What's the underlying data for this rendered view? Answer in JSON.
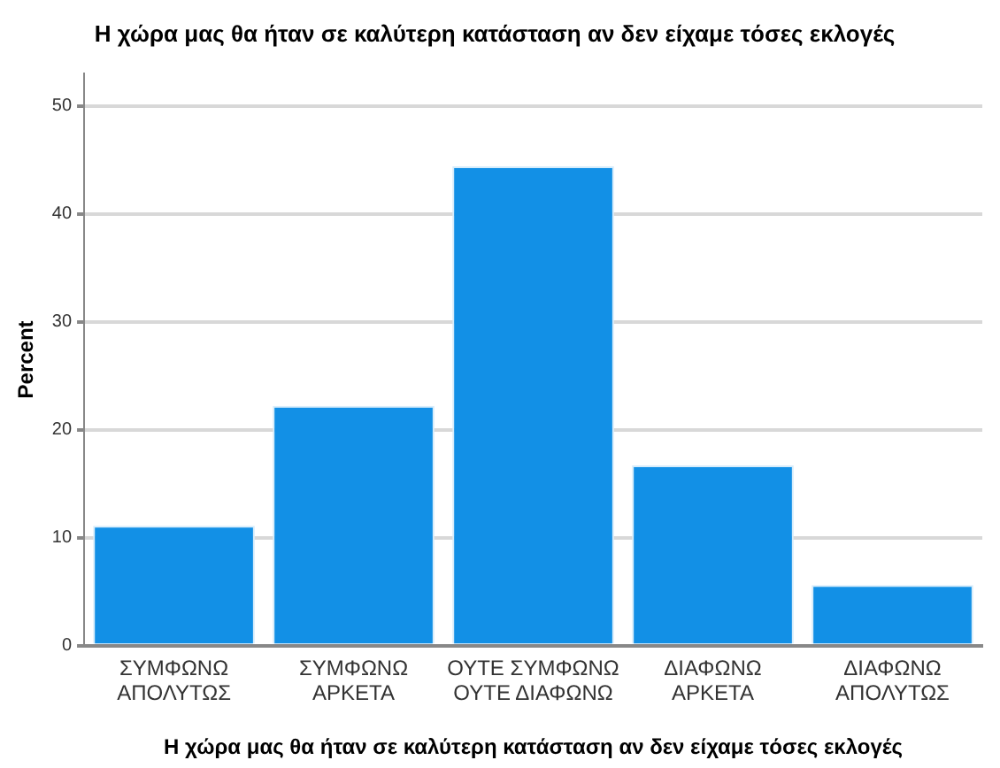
{
  "chart_data": {
    "type": "bar",
    "title": "Η χώρα μας θα ήταν σε καλύτερη κατάσταση αν δεν είχαμε τόσες εκλογές",
    "xlabel": "Η χώρα μας θα ήταν σε καλύτερη κατάσταση αν δεν είχαμε τόσες εκλογές",
    "ylabel": "Percent",
    "categories": [
      "ΣΥΜΦΩΝΩ\nΑΠΟΛΥΤΩΣ",
      "ΣΥΜΦΩΝΩ\nΑΡΚΕΤΑ",
      "ΟΥΤΕ ΣΥΜΦΩΝΩ\nΟΥΤΕ ΔΙΑΦΩΝΩ",
      "ΔΙΑΦΩΝΩ\nΑΡΚΕΤΑ",
      "ΔΙΑΦΩΝΩ\nΑΠΟΛΥΤΩΣ"
    ],
    "values": [
      11.1,
      22.2,
      44.4,
      16.7,
      5.6
    ],
    "color": "#1290e6",
    "ylim": [
      0,
      53
    ],
    "yticks": [
      0,
      10,
      20,
      30,
      40,
      50
    ],
    "grid": "y",
    "legend": false
  }
}
